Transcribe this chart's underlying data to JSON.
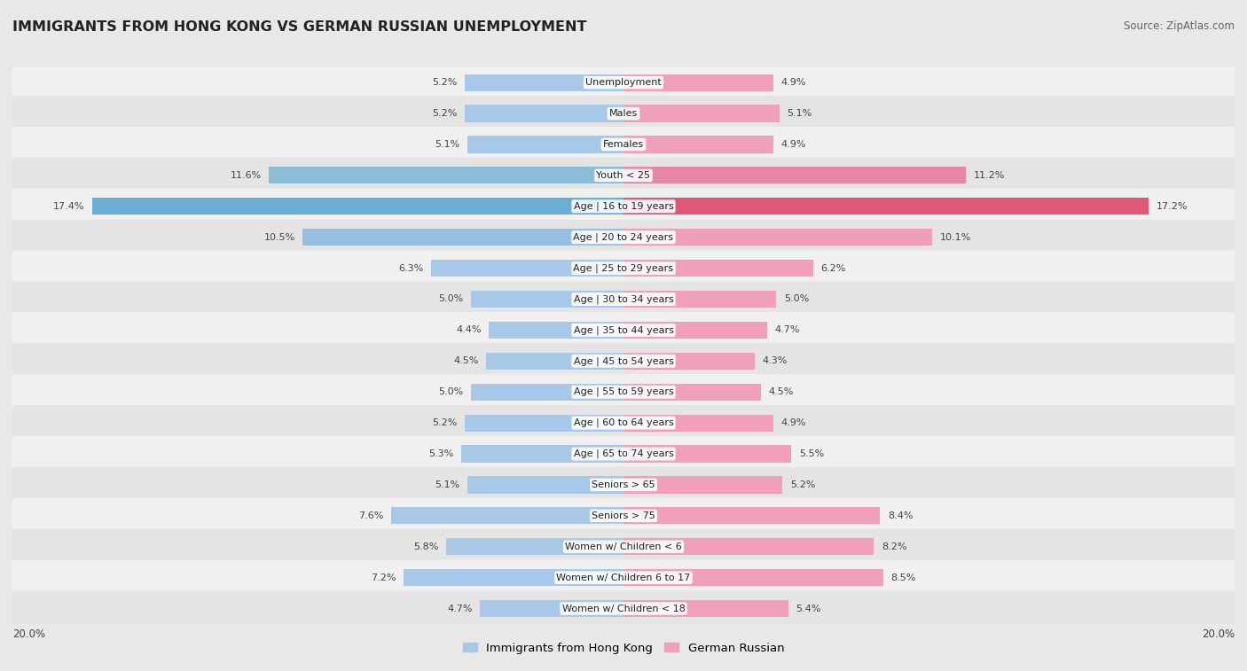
{
  "title": "IMMIGRANTS FROM HONG KONG VS GERMAN RUSSIAN UNEMPLOYMENT",
  "source": "Source: ZipAtlas.com",
  "categories": [
    "Unemployment",
    "Males",
    "Females",
    "Youth < 25",
    "Age | 16 to 19 years",
    "Age | 20 to 24 years",
    "Age | 25 to 29 years",
    "Age | 30 to 34 years",
    "Age | 35 to 44 years",
    "Age | 45 to 54 years",
    "Age | 55 to 59 years",
    "Age | 60 to 64 years",
    "Age | 65 to 74 years",
    "Seniors > 65",
    "Seniors > 75",
    "Women w/ Children < 6",
    "Women w/ Children 6 to 17",
    "Women w/ Children < 18"
  ],
  "hk_values": [
    5.2,
    5.2,
    5.1,
    11.6,
    17.4,
    10.5,
    6.3,
    5.0,
    4.4,
    4.5,
    5.0,
    5.2,
    5.3,
    5.1,
    7.6,
    5.8,
    7.2,
    4.7
  ],
  "gr_values": [
    4.9,
    5.1,
    4.9,
    11.2,
    17.2,
    10.1,
    6.2,
    5.0,
    4.7,
    4.3,
    4.5,
    4.9,
    5.5,
    5.2,
    8.4,
    8.2,
    8.5,
    5.4
  ],
  "hk_color": "#a8c8e8",
  "gr_color": "#f0a0b8",
  "hk_color_intense": "#6aaed6",
  "gr_color_intense": "#e05878",
  "axis_limit": 20.0,
  "bg_color": "#e8e8e8",
  "row_even_color": "#f5f5f5",
  "row_odd_color": "#e0e0e0",
  "legend_labels": [
    "Immigrants from Hong Kong",
    "German Russian"
  ]
}
